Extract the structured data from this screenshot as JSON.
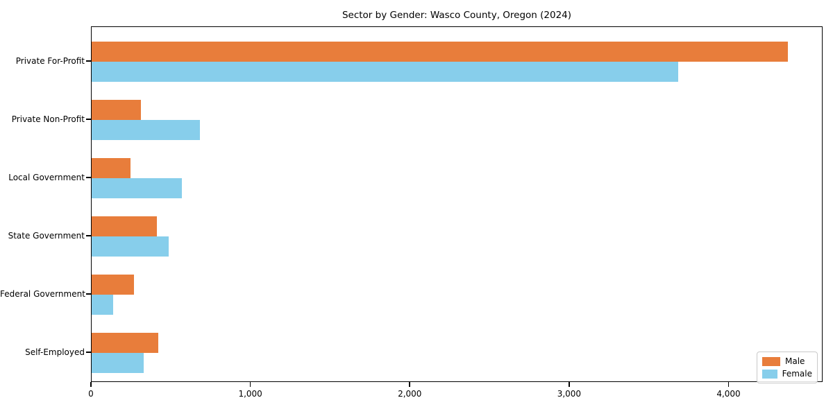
{
  "chart_data": {
    "type": "bar",
    "orientation": "horizontal",
    "title": "Sector by Gender: Wasco County, Oregon (2024)",
    "categories": [
      "Private For-Profit",
      "Private Non-Profit",
      "Local Government",
      "State Government",
      "Federal Government",
      "Self-Employed"
    ],
    "series": [
      {
        "name": "Male",
        "color": "#e87d3b",
        "values": [
          4370,
          310,
          245,
          410,
          265,
          420
        ]
      },
      {
        "name": "Female",
        "color": "#87ceeb",
        "values": [
          3680,
          680,
          565,
          485,
          135,
          325
        ]
      }
    ],
    "xlim": [
      0,
      4590
    ],
    "x_ticks": [
      0,
      1000,
      2000,
      3000,
      4000
    ],
    "x_tick_labels": [
      "0",
      "1,000",
      "2,000",
      "3,000",
      "4,000"
    ],
    "xlabel": "",
    "ylabel": "",
    "grid": false,
    "legend_position": "lower right",
    "axis_color": "#000000",
    "background_color": "#ffffff"
  }
}
